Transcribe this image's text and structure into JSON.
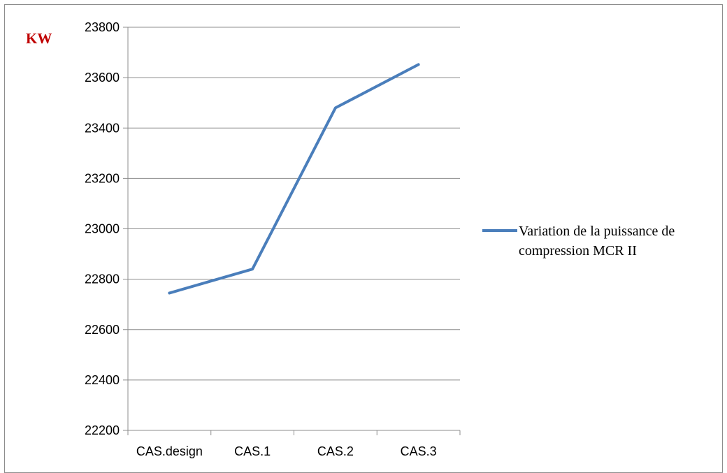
{
  "colors": {
    "series": "#4a7ebb",
    "unit_label": "#c00000",
    "gridline": "#8c8c8c",
    "axis": "#8c8c8c"
  },
  "chart_data": {
    "type": "line",
    "title": "",
    "xlabel": "",
    "ylabel": "KW",
    "categories": [
      "CAS.design",
      "CAS.1",
      "CAS.2",
      "CAS.3"
    ],
    "series": [
      {
        "name": "Variation de la puissance de compression MCR II",
        "legend_lines": [
          "Variation de la puissance de",
          "compression MCR II"
        ],
        "values": [
          22745,
          22840,
          23480,
          23652
        ]
      }
    ],
    "ylim": [
      22200,
      23800
    ],
    "yticks": [
      22200,
      22400,
      22600,
      22800,
      23000,
      23200,
      23400,
      23600,
      23800
    ],
    "ytick_labels": [
      "22200",
      "22400",
      "22600",
      "22800",
      "23000",
      "23200",
      "23400",
      "23600",
      "23800"
    ],
    "grid": true,
    "legend_position": "right"
  }
}
